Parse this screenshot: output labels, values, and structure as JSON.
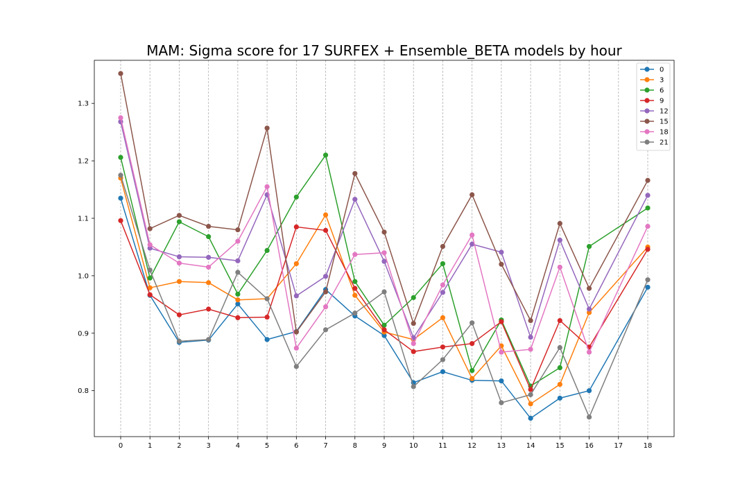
{
  "chart_data": {
    "type": "line",
    "title": "MAM: Sigma score for 17 SURFEX + Ensemble_BETA models by hour",
    "xlabel": "",
    "ylabel": "",
    "x": [
      0,
      1,
      2,
      3,
      4,
      5,
      6,
      7,
      8,
      9,
      10,
      11,
      12,
      13,
      14,
      15,
      16,
      17,
      18
    ],
    "x_tick_labels": [
      "0",
      "1",
      "2",
      "3",
      "4",
      "5",
      "6",
      "7",
      "8",
      "9",
      "10",
      "11",
      "12",
      "13",
      "14",
      "15",
      "16",
      "17",
      "18"
    ],
    "y_ticks": [
      0.8,
      0.9,
      1.0,
      1.1,
      1.2,
      1.3
    ],
    "y_tick_labels": [
      "0.8",
      "0.9",
      "1.0",
      "1.1",
      "1.2",
      "1.3"
    ],
    "xlim": [
      -0.9,
      18.9
    ],
    "ylim": [
      0.72,
      1.375
    ],
    "grid": "vertical dashed",
    "legend_position": "top-right",
    "series": [
      {
        "name": "0",
        "color": "#1f77b4",
        "x": [
          0,
          1,
          2,
          3,
          4,
          5,
          6,
          7,
          8,
          9,
          10,
          11,
          12,
          13,
          14,
          15,
          16,
          18
        ],
        "values": [
          1.135,
          0.966,
          0.884,
          0.888,
          0.951,
          0.889,
          0.903,
          0.976,
          0.93,
          0.896,
          0.814,
          0.833,
          0.818,
          0.817,
          0.752,
          0.787,
          0.8,
          0.98
        ]
      },
      {
        "name": "3",
        "color": "#ff7f0e",
        "x": [
          0,
          1,
          2,
          3,
          4,
          5,
          6,
          7,
          8,
          9,
          10,
          11,
          12,
          13,
          14,
          15,
          16,
          18
        ],
        "values": [
          1.17,
          0.979,
          0.99,
          0.988,
          0.958,
          0.96,
          1.021,
          1.106,
          0.966,
          0.902,
          0.889,
          0.927,
          0.821,
          0.878,
          0.777,
          0.811,
          0.936,
          1.05
        ]
      },
      {
        "name": "6",
        "color": "#2ca02c",
        "x": [
          0,
          1,
          2,
          3,
          4,
          5,
          6,
          7,
          8,
          9,
          10,
          11,
          12,
          13,
          14,
          15,
          16,
          18
        ],
        "values": [
          1.206,
          0.996,
          1.094,
          1.068,
          0.968,
          1.044,
          1.137,
          1.21,
          0.99,
          0.914,
          0.962,
          1.021,
          0.835,
          0.923,
          0.808,
          0.84,
          1.051,
          1.118
        ]
      },
      {
        "name": "9",
        "color": "#d62728",
        "x": [
          0,
          1,
          2,
          3,
          4,
          5,
          6,
          7,
          8,
          9,
          10,
          11,
          12,
          13,
          14,
          15,
          16,
          18
        ],
        "values": [
          1.096,
          0.967,
          0.932,
          0.942,
          0.927,
          0.928,
          1.085,
          1.079,
          0.978,
          0.906,
          0.868,
          0.876,
          0.882,
          0.92,
          0.802,
          0.922,
          0.876,
          1.046
        ]
      },
      {
        "name": "12",
        "color": "#9467bd",
        "x": [
          0,
          1,
          2,
          3,
          4,
          5,
          6,
          7,
          8,
          9,
          10,
          11,
          12,
          13,
          14,
          15,
          16,
          18
        ],
        "values": [
          1.268,
          1.048,
          1.033,
          1.032,
          1.026,
          1.141,
          0.965,
          0.999,
          1.133,
          1.025,
          0.892,
          0.971,
          1.055,
          1.041,
          0.893,
          1.062,
          0.942,
          1.14
        ]
      },
      {
        "name": "15",
        "color": "#8c564b",
        "x": [
          0,
          1,
          2,
          3,
          4,
          5,
          6,
          7,
          8,
          9,
          10,
          11,
          12,
          13,
          14,
          15,
          16,
          18
        ],
        "values": [
          1.352,
          1.082,
          1.105,
          1.086,
          1.08,
          1.257,
          0.902,
          0.972,
          1.178,
          1.076,
          0.917,
          1.051,
          1.141,
          1.02,
          0.922,
          1.091,
          0.978,
          1.166
        ]
      },
      {
        "name": "18",
        "color": "#e377c2",
        "x": [
          0,
          1,
          2,
          3,
          4,
          5,
          6,
          7,
          8,
          9,
          10,
          11,
          12,
          13,
          14,
          15,
          16,
          18
        ],
        "values": [
          1.275,
          1.054,
          1.022,
          1.015,
          1.06,
          1.155,
          0.874,
          0.946,
          1.037,
          1.04,
          0.882,
          0.984,
          1.071,
          0.867,
          0.872,
          1.015,
          0.867,
          1.086
        ]
      },
      {
        "name": "21",
        "color": "#7f7f7f",
        "x": [
          0,
          1,
          2,
          3,
          4,
          5,
          6,
          7,
          8,
          9,
          10,
          11,
          12,
          13,
          14,
          15,
          16,
          18
        ],
        "values": [
          1.175,
          1.01,
          0.886,
          0.889,
          1.006,
          0.96,
          0.842,
          0.906,
          0.935,
          0.972,
          0.807,
          0.854,
          0.918,
          0.779,
          0.793,
          0.875,
          0.754,
          0.993
        ]
      }
    ]
  }
}
